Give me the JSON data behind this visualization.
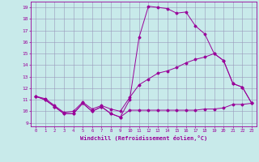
{
  "xlabel": "Windchill (Refroidissement éolien,°C)",
  "xlim": [
    -0.5,
    23.5
  ],
  "ylim": [
    8.7,
    19.5
  ],
  "xticks": [
    0,
    1,
    2,
    3,
    4,
    5,
    6,
    7,
    8,
    9,
    10,
    11,
    12,
    13,
    14,
    15,
    16,
    17,
    18,
    19,
    20,
    21,
    22,
    23
  ],
  "yticks": [
    9,
    10,
    11,
    12,
    13,
    14,
    15,
    16,
    17,
    18,
    19
  ],
  "bg_color": "#c8eaea",
  "line_color": "#990099",
  "grid_color": "#9999bb",
  "line1_x": [
    0,
    1,
    2,
    3,
    4,
    5,
    6,
    7,
    8,
    9,
    10,
    11,
    12,
    13,
    14,
    15,
    16,
    17,
    18,
    19,
    20,
    21,
    22,
    23
  ],
  "line1_y": [
    11.3,
    11.0,
    10.4,
    9.8,
    9.8,
    10.7,
    10.0,
    10.4,
    9.8,
    9.5,
    10.1,
    10.1,
    10.1,
    10.1,
    10.1,
    10.1,
    10.1,
    10.1,
    10.2,
    10.2,
    10.3,
    10.6,
    10.6,
    10.7
  ],
  "line2_x": [
    0,
    1,
    2,
    3,
    4,
    5,
    6,
    7,
    8,
    9,
    10,
    11,
    12,
    13,
    14,
    15,
    16,
    17,
    18,
    19,
    20,
    21,
    22,
    23
  ],
  "line2_y": [
    11.3,
    11.0,
    10.4,
    9.8,
    9.8,
    10.7,
    10.0,
    10.4,
    9.8,
    9.5,
    11.0,
    16.4,
    19.1,
    19.0,
    18.9,
    18.5,
    18.6,
    17.4,
    16.7,
    15.0,
    14.4,
    12.4,
    12.1,
    10.7
  ],
  "line3_x": [
    0,
    1,
    2,
    3,
    4,
    5,
    6,
    7,
    8,
    9,
    10,
    11,
    12,
    13,
    14,
    15,
    16,
    17,
    18,
    19,
    20,
    21,
    22,
    23
  ],
  "line3_y": [
    11.3,
    11.1,
    10.5,
    9.9,
    10.0,
    10.8,
    10.2,
    10.5,
    10.2,
    10.0,
    11.2,
    12.3,
    12.8,
    13.3,
    13.5,
    13.8,
    14.2,
    14.5,
    14.7,
    15.0,
    14.4,
    12.4,
    12.1,
    10.7
  ]
}
